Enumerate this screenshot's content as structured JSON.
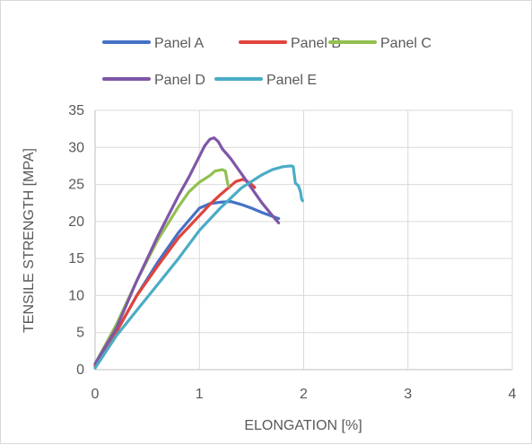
{
  "chart_data": {
    "type": "line",
    "title": "",
    "xlabel": "ELONGATION [%]",
    "ylabel": "TENSILE STRENGTH [MPA]",
    "xlim": [
      0,
      4
    ],
    "ylim": [
      0,
      35
    ],
    "x_ticks": [
      0,
      1,
      2,
      3,
      4
    ],
    "y_ticks": [
      0,
      5,
      10,
      15,
      20,
      25,
      30,
      35
    ],
    "grid": true,
    "legend_position": "top",
    "series": [
      {
        "name": "Panel A",
        "color": "#4472c4",
        "points": [
          [
            0,
            0.5
          ],
          [
            0.2,
            5
          ],
          [
            0.4,
            10
          ],
          [
            0.6,
            14.5
          ],
          [
            0.8,
            18.5
          ],
          [
            1.0,
            21.8
          ],
          [
            1.1,
            22.4
          ],
          [
            1.2,
            22.6
          ],
          [
            1.3,
            22.7
          ],
          [
            1.4,
            22.3
          ],
          [
            1.5,
            21.8
          ],
          [
            1.6,
            21.2
          ],
          [
            1.7,
            20.7
          ],
          [
            1.76,
            20.4
          ]
        ]
      },
      {
        "name": "Panel B",
        "color": "#e0443c",
        "points": [
          [
            0,
            0.5
          ],
          [
            0.2,
            5
          ],
          [
            0.4,
            10
          ],
          [
            0.6,
            14
          ],
          [
            0.8,
            17.8
          ],
          [
            1.0,
            20.8
          ],
          [
            1.1,
            22.3
          ],
          [
            1.2,
            23.6
          ],
          [
            1.3,
            24.8
          ],
          [
            1.35,
            25.4
          ],
          [
            1.42,
            25.7
          ],
          [
            1.46,
            25.4
          ],
          [
            1.5,
            25.0
          ],
          [
            1.53,
            24.6
          ]
        ]
      },
      {
        "name": "Panel C",
        "color": "#92c050",
        "points": [
          [
            0,
            0.8
          ],
          [
            0.2,
            6
          ],
          [
            0.4,
            12
          ],
          [
            0.6,
            17.5
          ],
          [
            0.8,
            22
          ],
          [
            0.9,
            24
          ],
          [
            1.0,
            25.3
          ],
          [
            1.1,
            26.2
          ],
          [
            1.15,
            26.8
          ],
          [
            1.22,
            27.0
          ],
          [
            1.25,
            26.8
          ],
          [
            1.27,
            25.2
          ],
          [
            1.28,
            24.8
          ]
        ]
      },
      {
        "name": "Panel D",
        "color": "#7e57a8",
        "points": [
          [
            0,
            0.8
          ],
          [
            0.2,
            5.5
          ],
          [
            0.4,
            12
          ],
          [
            0.6,
            18
          ],
          [
            0.8,
            23.5
          ],
          [
            0.9,
            26
          ],
          [
            1.0,
            28.8
          ],
          [
            1.05,
            30.2
          ],
          [
            1.1,
            31.1
          ],
          [
            1.14,
            31.3
          ],
          [
            1.18,
            30.8
          ],
          [
            1.22,
            29.8
          ],
          [
            1.3,
            28.5
          ],
          [
            1.4,
            26.5
          ],
          [
            1.5,
            24.5
          ],
          [
            1.6,
            22.5
          ],
          [
            1.7,
            20.8
          ],
          [
            1.76,
            19.8
          ]
        ]
      },
      {
        "name": "Panel E",
        "color": "#4bacc6",
        "points": [
          [
            0,
            0.2
          ],
          [
            0.2,
            4.5
          ],
          [
            0.4,
            8
          ],
          [
            0.6,
            11.5
          ],
          [
            0.8,
            15
          ],
          [
            1.0,
            18.8
          ],
          [
            1.2,
            21.8
          ],
          [
            1.4,
            24.5
          ],
          [
            1.6,
            26.3
          ],
          [
            1.7,
            27
          ],
          [
            1.8,
            27.4
          ],
          [
            1.88,
            27.5
          ],
          [
            1.9,
            27.4
          ],
          [
            1.92,
            25.2
          ],
          [
            1.95,
            24.8
          ],
          [
            1.97,
            24.0
          ],
          [
            1.98,
            23.0
          ],
          [
            1.99,
            22.8
          ]
        ]
      }
    ]
  }
}
